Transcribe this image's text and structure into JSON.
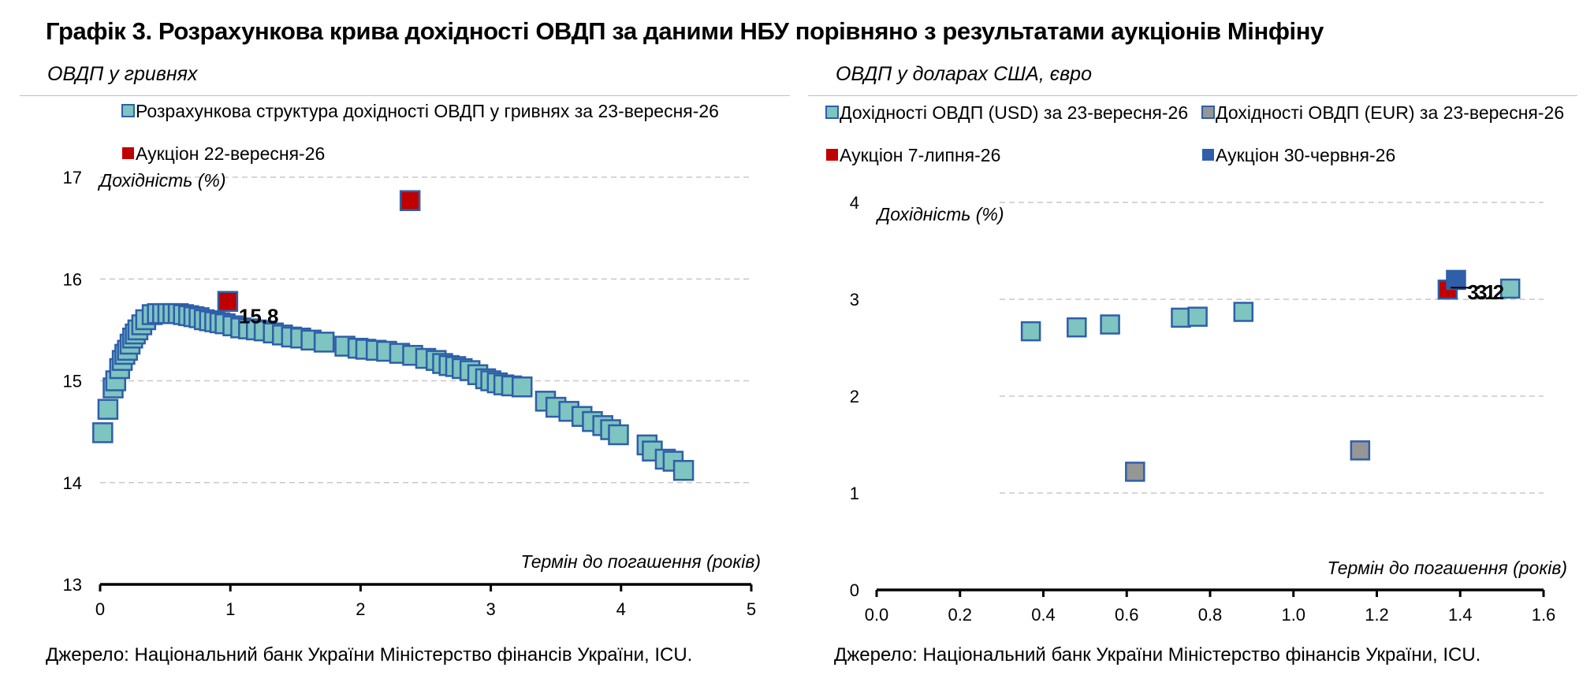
{
  "title": "Графік 3. Розрахункова крива дохідності ОВДП за даними НБУ порівняно з результатами аукціонів Мінфіну",
  "left_panel": {
    "subtitle": "ОВДП у гривнях",
    "source": "Джерело: Національний банк України Міністерство фінансів України, ICU."
  },
  "right_panel": {
    "subtitle": "ОВДП у доларах США, євро",
    "source": "Джерело: Національний банк України Міністерство фінансів України, ICU."
  },
  "colors": {
    "teal_fill": "#7ec4c0",
    "blue_border": "#2e5fa8",
    "red": "#c00000",
    "blue": "#2e5fa8",
    "gray": "#969696",
    "grid": "#c8c8c8"
  },
  "chart_data": [
    {
      "type": "scatter",
      "ylabel": "Дохідність (%)",
      "xlabel": "Термін до погашення (років)",
      "xlim": [
        0,
        5
      ],
      "ylim": [
        13,
        17
      ],
      "xticks": [
        "0",
        "1",
        "2",
        "3",
        "4",
        "5"
      ],
      "yticks": [
        "13",
        "14",
        "15",
        "16",
        "17"
      ],
      "grid": true,
      "legend_position": "top-left",
      "series": [
        {
          "name": "Розрахункова структура дохідності ОВДП у гривнях за 23-вересня-26",
          "color": "#7ec4c0",
          "x": [
            0.02,
            0.06,
            0.1,
            0.12,
            0.15,
            0.17,
            0.19,
            0.21,
            0.23,
            0.25,
            0.27,
            0.29,
            0.32,
            0.35,
            0.4,
            0.44,
            0.48,
            0.52,
            0.56,
            0.6,
            0.64,
            0.68,
            0.72,
            0.76,
            0.8,
            0.84,
            0.88,
            0.92,
            0.96,
            1.02,
            1.08,
            1.14,
            1.2,
            1.26,
            1.33,
            1.4,
            1.47,
            1.54,
            1.62,
            1.72,
            1.88,
            1.98,
            2.04,
            2.12,
            2.2,
            2.3,
            2.4,
            2.5,
            2.58,
            2.63,
            2.68,
            2.73,
            2.78,
            2.84,
            2.9,
            2.96,
            3.0,
            3.05,
            3.1,
            3.16,
            3.24,
            3.42,
            3.5,
            3.6,
            3.7,
            3.78,
            3.86,
            3.92,
            3.98,
            4.2,
            4.24,
            4.34,
            4.4,
            4.48
          ],
          "values": [
            14.49,
            14.72,
            14.93,
            15.0,
            15.12,
            15.2,
            15.26,
            15.3,
            15.36,
            15.42,
            15.46,
            15.5,
            15.55,
            15.6,
            15.65,
            15.66,
            15.66,
            15.66,
            15.66,
            15.66,
            15.65,
            15.64,
            15.63,
            15.62,
            15.6,
            15.59,
            15.58,
            15.57,
            15.56,
            15.54,
            15.52,
            15.51,
            15.5,
            15.49,
            15.47,
            15.45,
            15.43,
            15.42,
            15.4,
            15.38,
            15.34,
            15.32,
            15.31,
            15.3,
            15.29,
            15.27,
            15.25,
            15.22,
            15.2,
            15.17,
            15.15,
            15.14,
            15.12,
            15.1,
            15.06,
            15.02,
            15.0,
            14.98,
            14.96,
            14.95,
            14.94,
            14.8,
            14.74,
            14.7,
            14.65,
            14.6,
            14.56,
            14.52,
            14.47,
            14.37,
            14.31,
            14.23,
            14.21,
            14.12
          ]
        },
        {
          "name": "Аукціон 22-вересня-26",
          "color": "#c00000",
          "x": [
            0.98,
            2.38
          ],
          "values": [
            15.78,
            16.77
          ],
          "labels": [
            "15.8",
            ""
          ]
        }
      ]
    },
    {
      "type": "scatter",
      "ylabel": "Дохідність (%)",
      "xlabel": "Термін до погашення (років)",
      "xlim": [
        0,
        1.6
      ],
      "ylim": [
        0,
        4
      ],
      "xticks": [
        "0.0",
        "0.2",
        "0.4",
        "0.6",
        "0.8",
        "1.0",
        "1.2",
        "1.4",
        "1.6"
      ],
      "yticks": [
        "0",
        "1",
        "2",
        "3",
        "4"
      ],
      "grid": true,
      "legend_position": "top",
      "series": [
        {
          "name": "Дохідності ОВДП (USD) за 23-вересня-26",
          "color": "#7ec4c0",
          "x": [
            0.37,
            0.48,
            0.56,
            0.73,
            0.77,
            0.88,
            1.52
          ],
          "values": [
            2.67,
            2.71,
            2.74,
            2.81,
            2.82,
            2.87,
            3.11
          ]
        },
        {
          "name": "Дохідності ОВДП (EUR) за 23-вересня-26",
          "color": "#969696",
          "x": [
            0.62,
            1.16
          ],
          "values": [
            1.22,
            1.44
          ]
        },
        {
          "name": "Аукціон 7-липня-26",
          "color": "#c00000",
          "x": [
            1.37
          ],
          "values": [
            3.1
          ],
          "labels": [
            "3.1"
          ]
        },
        {
          "name": "Аукціон 30-червня-26",
          "color": "#2e5fa8",
          "x": [
            1.39
          ],
          "values": [
            3.2
          ],
          "labels": [
            "3.2"
          ]
        }
      ]
    }
  ]
}
